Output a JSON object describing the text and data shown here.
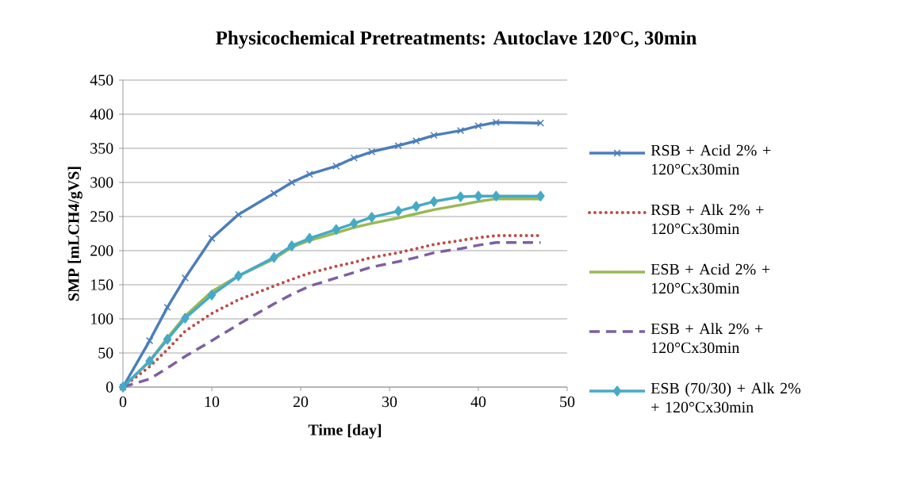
{
  "chart_data": {
    "type": "line",
    "title": "Physicochemical Pretreatments: Autoclave 120°C, 30min",
    "xlabel": "Time [day]",
    "ylabel": "SMP [mLCH4/gVS]",
    "x": [
      0,
      3,
      5,
      7,
      10,
      13,
      17,
      19,
      21,
      24,
      26,
      28,
      31,
      33,
      35,
      38,
      40,
      42,
      47
    ],
    "series": [
      {
        "name": "RSB + Acid 2% + 120°Cx30min",
        "color": "#4a7ebb",
        "marker": "cross",
        "line_style": "solid",
        "values": [
          0,
          68,
          117,
          160,
          218,
          253,
          284,
          300,
          312,
          324,
          336,
          345,
          354,
          361,
          369,
          376,
          383,
          388,
          387
        ]
      },
      {
        "name": "RSB + Alk 2% + 120°Cx30min",
        "color": "#be4b48",
        "marker": "none",
        "line_style": "dotted",
        "values": [
          0,
          30,
          55,
          82,
          108,
          128,
          148,
          158,
          167,
          177,
          183,
          190,
          197,
          203,
          209,
          215,
          219,
          222,
          222
        ]
      },
      {
        "name": "ESB + Acid 2% + 120°Cx30min",
        "color": "#98b954",
        "marker": "none",
        "line_style": "solid",
        "values": [
          0,
          38,
          72,
          104,
          140,
          163,
          188,
          205,
          215,
          226,
          234,
          240,
          248,
          254,
          260,
          267,
          272,
          276,
          276
        ]
      },
      {
        "name": "ESB + Alk 2% + 120°Cx30min",
        "color": "#7d60a0",
        "marker": "none",
        "line_style": "dashed",
        "values": [
          0,
          12,
          28,
          45,
          68,
          92,
          122,
          136,
          148,
          160,
          168,
          176,
          184,
          190,
          197,
          203,
          208,
          212,
          212
        ]
      },
      {
        "name": "ESB (70/30) + Alk 2% + 120°Cx30min",
        "color": "#46aac5",
        "marker": "diamond",
        "line_style": "solid",
        "values": [
          0,
          38,
          70,
          101,
          135,
          163,
          190,
          207,
          218,
          231,
          240,
          249,
          258,
          265,
          272,
          279,
          280,
          280,
          280
        ]
      }
    ],
    "xlim": [
      0,
      50
    ],
    "xticks": [
      0,
      10,
      20,
      30,
      40,
      50
    ],
    "ylim": [
      0,
      450
    ],
    "yticks": [
      0,
      50,
      100,
      150,
      200,
      250,
      300,
      350,
      400,
      450
    ],
    "grid": "y",
    "legend": "right"
  }
}
